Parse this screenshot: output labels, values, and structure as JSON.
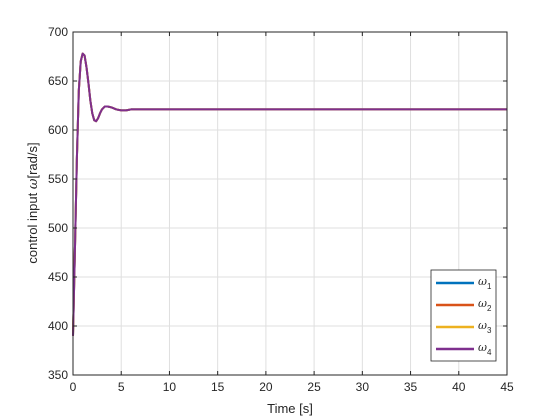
{
  "chart_data": {
    "type": "line",
    "title": "",
    "xlabel": "Time [s]",
    "ylabel_main": "control input ",
    "ylabel_symbol": "ω",
    "ylabel_unit": "[rad/s]",
    "xlim": [
      0,
      45
    ],
    "ylim": [
      350,
      700
    ],
    "xticks": [
      0,
      5,
      10,
      15,
      20,
      25,
      30,
      35,
      40,
      45
    ],
    "yticks": [
      350,
      400,
      450,
      500,
      550,
      600,
      650,
      700
    ],
    "grid": true,
    "legend_position": "bottom-right",
    "x": [
      0,
      0.2,
      0.4,
      0.6,
      0.8,
      1.0,
      1.2,
      1.4,
      1.6,
      1.8,
      2.0,
      2.2,
      2.4,
      2.6,
      2.8,
      3.0,
      3.3,
      3.6,
      4.0,
      4.5,
      5.0,
      5.5,
      6.0,
      7.0,
      8.0,
      10.0,
      15.0,
      20.0,
      25.0,
      30.0,
      35.0,
      40.0,
      45.0
    ],
    "series": [
      {
        "name": "ω",
        "subscript": "1",
        "color": "#0072BD",
        "values": [
          390,
          478,
          570,
          640,
          670,
          678,
          676,
          664,
          648,
          630,
          617,
          610,
          609,
          612,
          617,
          621,
          624,
          624,
          623,
          621,
          620,
          620,
          621,
          621,
          621,
          621,
          621,
          621,
          621,
          621,
          621,
          621,
          621
        ]
      },
      {
        "name": "ω",
        "subscript": "2",
        "color": "#D95319",
        "values": [
          390,
          478,
          570,
          640,
          670,
          678,
          676,
          664,
          648,
          630,
          617,
          610,
          609,
          612,
          617,
          621,
          624,
          624,
          623,
          621,
          620,
          620,
          621,
          621,
          621,
          621,
          621,
          621,
          621,
          621,
          621,
          621,
          621
        ]
      },
      {
        "name": "ω",
        "subscript": "3",
        "color": "#EDB120",
        "values": [
          390,
          478,
          570,
          640,
          670,
          678,
          676,
          664,
          648,
          630,
          617,
          610,
          609,
          612,
          617,
          621,
          624,
          624,
          623,
          621,
          620,
          620,
          621,
          621,
          621,
          621,
          621,
          621,
          621,
          621,
          621,
          621,
          621
        ]
      },
      {
        "name": "ω",
        "subscript": "4",
        "color": "#7E2F8E",
        "values": [
          390,
          478,
          570,
          640,
          670,
          678,
          676,
          664,
          648,
          630,
          617,
          610,
          609,
          612,
          617,
          621,
          624,
          624,
          623,
          621,
          620,
          620,
          621,
          621,
          621,
          621,
          621,
          621,
          621,
          621,
          621,
          621,
          621
        ]
      }
    ]
  }
}
